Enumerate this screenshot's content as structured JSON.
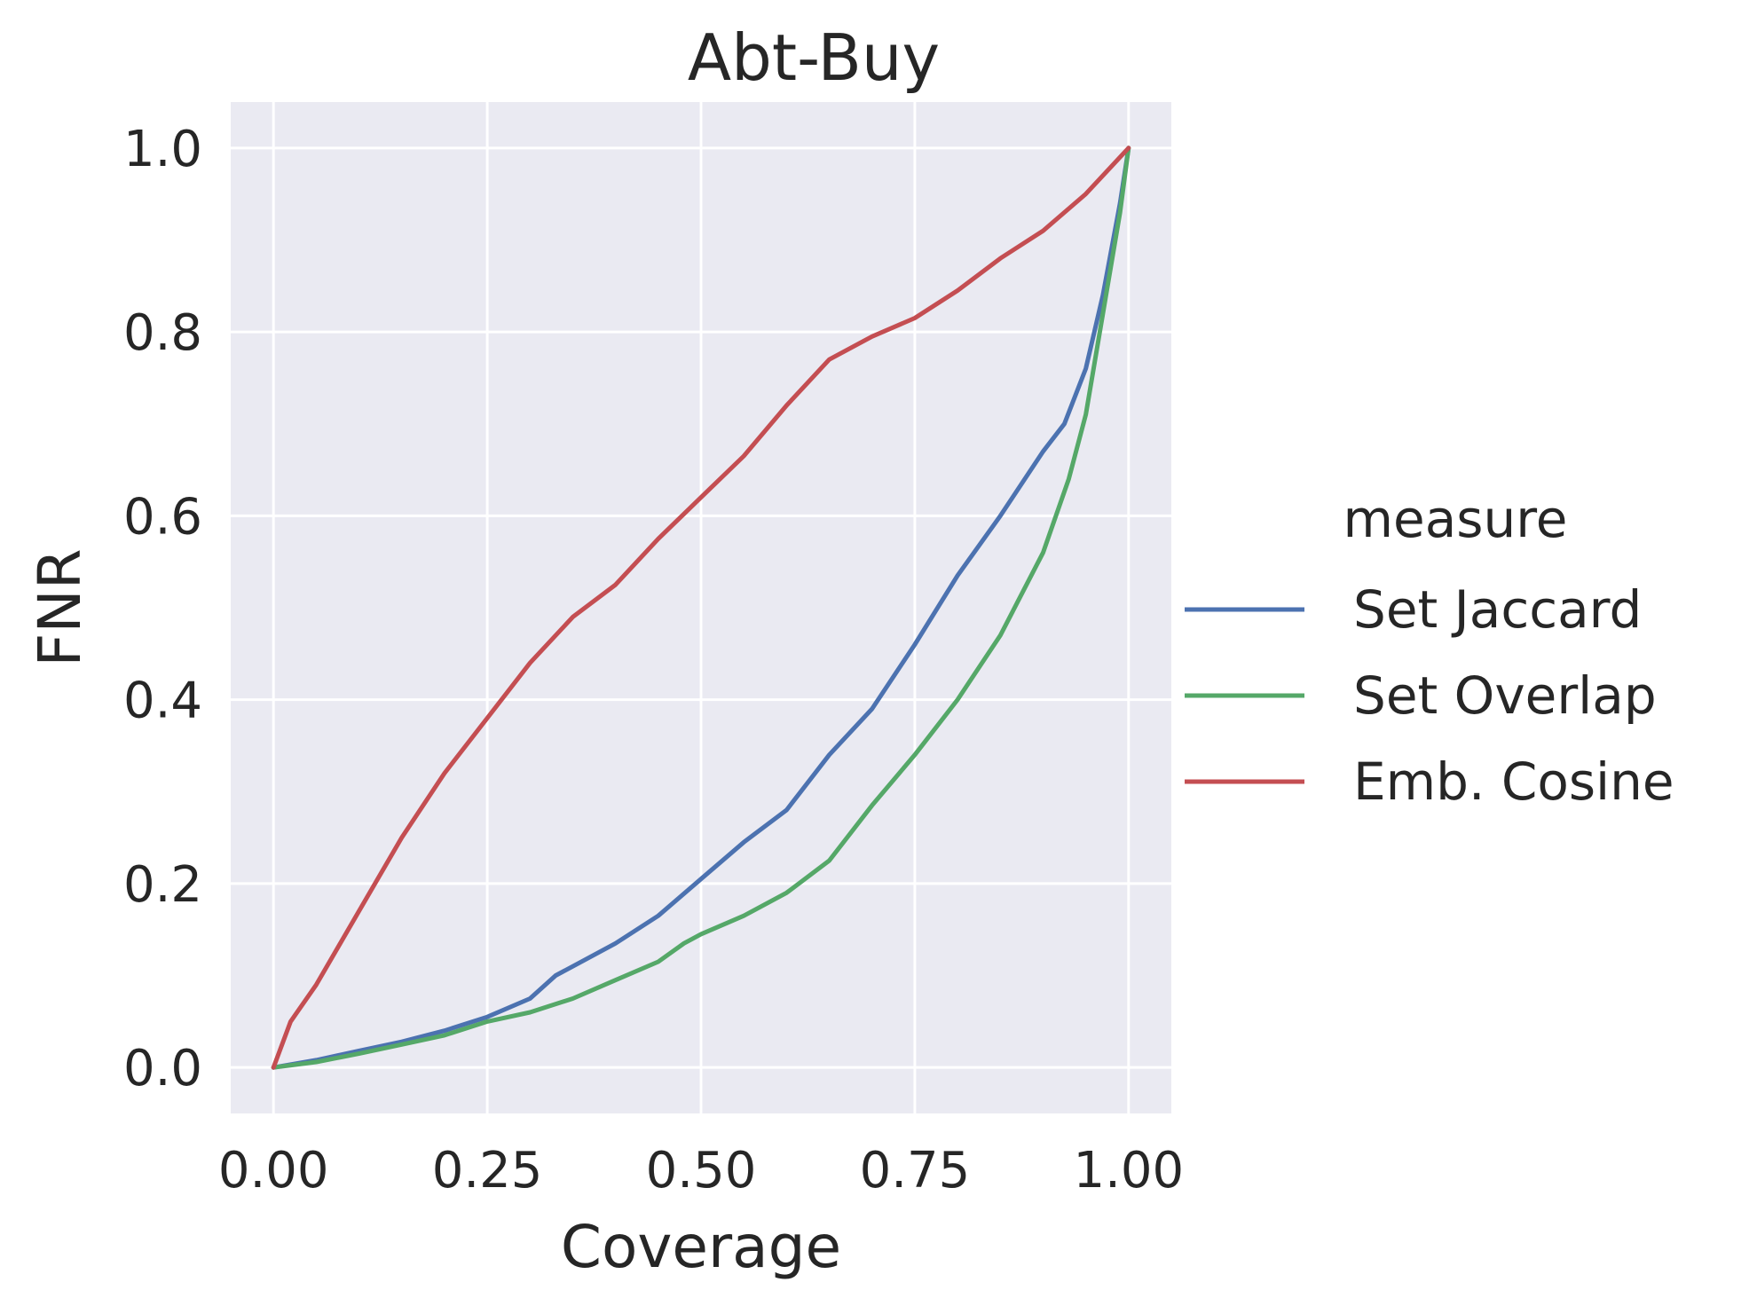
{
  "chart_data": {
    "type": "line",
    "title": "Abt-Buy",
    "xlabel": "Coverage",
    "ylabel": "FNR",
    "xlim": [
      -0.05,
      1.05
    ],
    "ylim": [
      -0.05,
      1.05
    ],
    "xticks": [
      0.0,
      0.25,
      0.5,
      0.75,
      1.0
    ],
    "xtick_labels": [
      "0.00",
      "0.25",
      "0.50",
      "0.75",
      "1.00"
    ],
    "yticks": [
      0.0,
      0.2,
      0.4,
      0.6,
      0.8,
      1.0
    ],
    "ytick_labels": [
      "0.0",
      "0.2",
      "0.4",
      "0.6",
      "0.8",
      "1.0"
    ],
    "grid": true,
    "legend": {
      "title": "measure",
      "placement": "right-outside"
    },
    "series": [
      {
        "name": "Set Jaccard",
        "color": "#4c72b0",
        "x": [
          0.0,
          0.05,
          0.1,
          0.15,
          0.2,
          0.25,
          0.3,
          0.33,
          0.35,
          0.4,
          0.45,
          0.5,
          0.55,
          0.6,
          0.65,
          0.7,
          0.75,
          0.8,
          0.85,
          0.9,
          0.925,
          0.95,
          0.97,
          0.99,
          1.0
        ],
        "y": [
          0.0,
          0.008,
          0.018,
          0.028,
          0.04,
          0.055,
          0.075,
          0.1,
          0.11,
          0.135,
          0.165,
          0.205,
          0.245,
          0.28,
          0.34,
          0.39,
          0.46,
          0.535,
          0.6,
          0.67,
          0.7,
          0.76,
          0.84,
          0.94,
          1.0
        ]
      },
      {
        "name": "Set Overlap",
        "color": "#55a868",
        "x": [
          0.0,
          0.05,
          0.1,
          0.15,
          0.2,
          0.25,
          0.3,
          0.35,
          0.4,
          0.45,
          0.48,
          0.5,
          0.55,
          0.6,
          0.65,
          0.7,
          0.75,
          0.8,
          0.85,
          0.9,
          0.93,
          0.95,
          0.97,
          0.99,
          1.0
        ],
        "y": [
          0.0,
          0.006,
          0.015,
          0.025,
          0.035,
          0.05,
          0.06,
          0.075,
          0.095,
          0.115,
          0.135,
          0.145,
          0.165,
          0.19,
          0.225,
          0.285,
          0.34,
          0.4,
          0.47,
          0.56,
          0.64,
          0.71,
          0.82,
          0.93,
          1.0
        ]
      },
      {
        "name": "Emb. Cosine",
        "color": "#c44e52",
        "x": [
          0.0,
          0.02,
          0.05,
          0.1,
          0.15,
          0.2,
          0.25,
          0.3,
          0.35,
          0.4,
          0.45,
          0.5,
          0.55,
          0.6,
          0.65,
          0.7,
          0.75,
          0.8,
          0.85,
          0.9,
          0.95,
          1.0
        ],
        "y": [
          0.0,
          0.05,
          0.09,
          0.17,
          0.25,
          0.32,
          0.38,
          0.44,
          0.49,
          0.525,
          0.575,
          0.62,
          0.665,
          0.72,
          0.77,
          0.795,
          0.815,
          0.845,
          0.88,
          0.91,
          0.95,
          1.0
        ]
      }
    ]
  }
}
